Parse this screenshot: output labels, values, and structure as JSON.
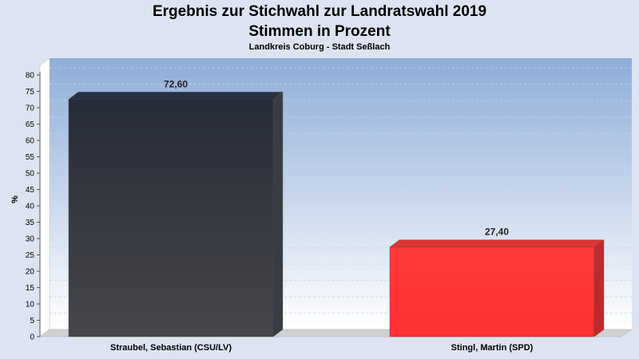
{
  "chart_data": {
    "type": "bar",
    "title": "Ergebnis zur Stichwahl zur Landratswahl 2019",
    "subtitle_line2": "Stimmen in Prozent",
    "subtitle": "Landkreis Coburg - Stadt Seßlach",
    "ylabel": "%",
    "ylim": [
      0,
      80
    ],
    "yticks": [
      0,
      5,
      10,
      15,
      20,
      25,
      30,
      35,
      40,
      45,
      50,
      55,
      60,
      65,
      70,
      75,
      80
    ],
    "categories": [
      "Straubel, Sebastian (CSU/LV)",
      "Stingl, Martin (SPD)"
    ],
    "values": [
      72.6,
      27.4
    ],
    "value_labels": [
      "72,60",
      "27,40"
    ],
    "colors": [
      "#2e3038",
      "#ff3030"
    ],
    "grid": true
  }
}
